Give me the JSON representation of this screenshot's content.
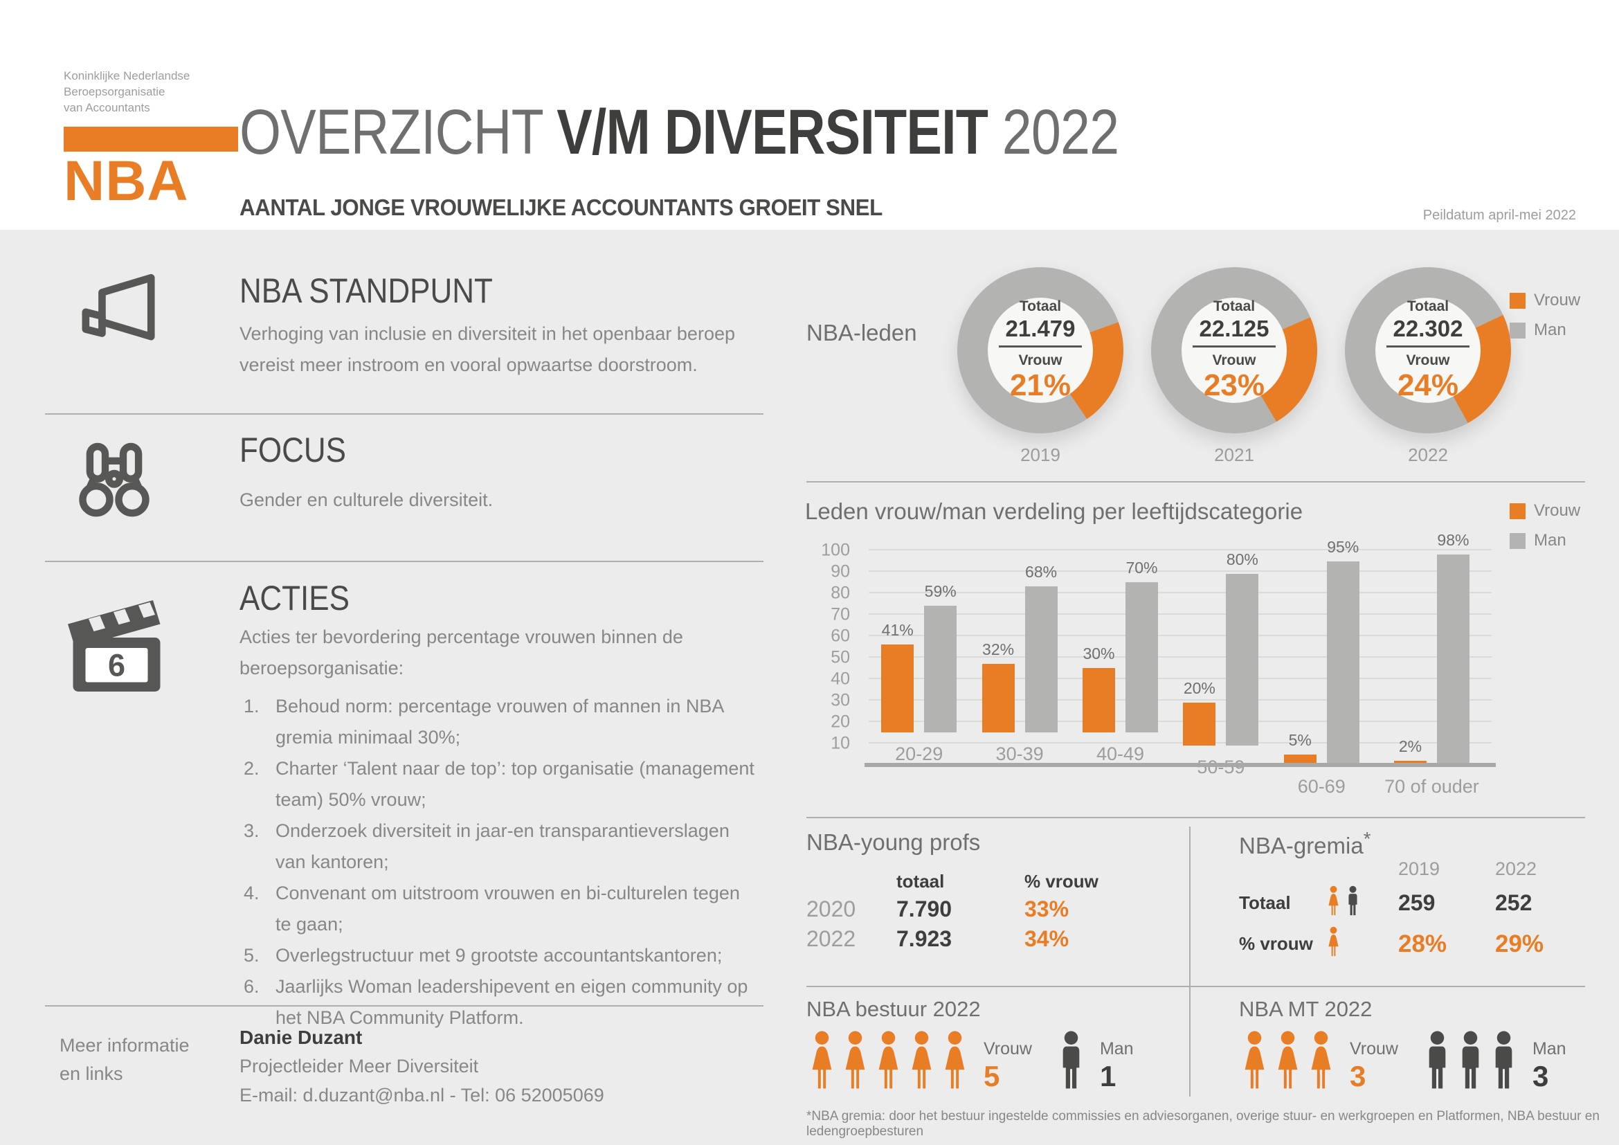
{
  "palette": {
    "vrouw_orange": "#E87D26",
    "man_gray": "#B3B3B2",
    "dark": "#3E3E3D",
    "text_gray": "#878787",
    "label_gray": "#9D9D9C"
  },
  "header": {
    "org_lines": [
      "Koninklijke Nederlandse",
      "Beroepsorganisatie",
      "van Accountants"
    ],
    "logo_acronym": "NBA",
    "title": {
      "light1": "OVERZICHT ",
      "bold": "V/M DIVERSITEIT",
      "light2": " 2022"
    },
    "subtitle": "AANTAL JONGE VROUWELIJKE ACCOUNTANTS GROEIT SNEL",
    "peildatum": "Peildatum april-mei 2022"
  },
  "left": {
    "standpunt": {
      "title": "NBA STANDPUNT",
      "text": "Verhoging van inclusie en diversiteit in het openbaar beroep vereist meer instroom en vooral opwaartse doorstroom."
    },
    "focus": {
      "title": "FOCUS",
      "text": "Gender en culturele diversiteit."
    },
    "acties": {
      "title": "ACTIES",
      "badge": "6",
      "intro": "Acties ter bevordering percentage vrouwen binnen de beroepsorganisatie:",
      "items": [
        "Behoud norm: percentage vrouwen of mannen in NBA gremia minimaal 30%;",
        "Charter ‘Talent naar de top’: top organisatie (management team) 50% vrouw;",
        "Onderzoek diversiteit in jaar-en transparantieverslagen van kantoren;",
        "Convenant om uitstroom vrouwen en bi-culturelen tegen te gaan;",
        "Overlegstructuur met 9 grootste accountantskantoren;",
        "Jaarlijks Woman leadershipevent en eigen community op het NBA Community Platform."
      ]
    },
    "contact": {
      "label_line1": "Meer informatie",
      "label_line2": "en links",
      "name": "Danie Duzant",
      "role": "Projectleider Meer Diversiteit",
      "details": "E-mail: d.duzant@nba.nl - Tel: 06 52005069"
    }
  },
  "chart_data": [
    {
      "type": "pie",
      "title": "NBA-leden",
      "legend": [
        "Vrouw",
        "Man"
      ],
      "colors": {
        "vrouw": "#E87D26",
        "man": "#B3B3B2"
      },
      "donuts": [
        {
          "year": "2019",
          "totaal_label": "Totaal",
          "totaal": "21.479",
          "vrouw_label": "Vrouw",
          "vrouw_pct": 21,
          "man_pct": 79
        },
        {
          "year": "2021",
          "totaal_label": "Totaal",
          "totaal": "22.125",
          "vrouw_label": "Vrouw",
          "vrouw_pct": 23,
          "man_pct": 77
        },
        {
          "year": "2022",
          "totaal_label": "Totaal",
          "totaal": "22.302",
          "vrouw_label": "Vrouw",
          "vrouw_pct": 24,
          "man_pct": 76
        }
      ]
    },
    {
      "type": "bar",
      "title": "Leden vrouw/man verdeling per leeftijdscategorie",
      "categories": [
        "20-29",
        "30-39",
        "40-49",
        "50-59",
        "60-69",
        "70 of ouder"
      ],
      "series": [
        {
          "name": "Vrouw",
          "color": "#E87D26",
          "values": [
            41,
            32,
            30,
            20,
            5,
            2
          ]
        },
        {
          "name": "Man",
          "color": "#B3B3B2",
          "values": [
            59,
            68,
            70,
            80,
            95,
            98
          ]
        }
      ],
      "value_suffix": "%",
      "ylim": [
        0,
        100
      ],
      "yticks": [
        10,
        20,
        30,
        40,
        50,
        60,
        70,
        80,
        90,
        100
      ],
      "grid": true,
      "legend_position": "top-right"
    },
    {
      "type": "table",
      "title": "NBA-young profs",
      "columns": [
        "",
        "totaal",
        "% vrouw"
      ],
      "rows": [
        [
          "2020",
          "7.790",
          "33%"
        ],
        [
          "2022",
          "7.923",
          "34%"
        ]
      ]
    },
    {
      "type": "table",
      "title": "NBA-gremia",
      "title_superscript": "*",
      "columns": [
        "",
        "2019",
        "2022"
      ],
      "rows": [
        [
          "Totaal",
          "259",
          "252"
        ],
        [
          "% vrouw",
          "28%",
          "29%"
        ]
      ]
    },
    {
      "type": "pictogram",
      "title": "NBA bestuur 2022",
      "vrouw_label": "Vrouw",
      "vrouw_count": 5,
      "man_label": "Man",
      "man_count": 1
    },
    {
      "type": "pictogram",
      "title": "NBA MT 2022",
      "vrouw_label": "Vrouw",
      "vrouw_count": 3,
      "man_label": "Man",
      "man_count": 3
    }
  ],
  "footnote": "*NBA gremia: door het bestuur ingestelde commissies en adviesorganen, overige stuur- en werkgroepen en Platformen, NBA bestuur en ledengroepbesturen"
}
